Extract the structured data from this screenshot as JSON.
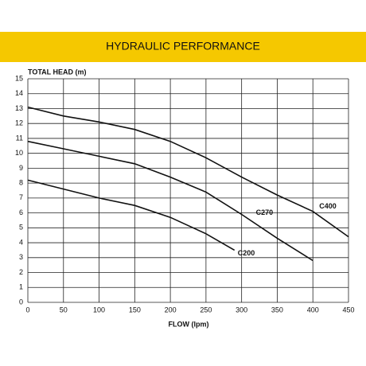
{
  "chart_data": {
    "type": "line",
    "title": "HYDRAULIC PERFORMANCE",
    "y_label": "TOTAL  HEAD (m)",
    "x_label": "FLOW (lpm)",
    "xlim": [
      0,
      450
    ],
    "xticks": [
      0,
      50,
      100,
      150,
      200,
      250,
      300,
      350,
      400,
      450
    ],
    "ylim": [
      0,
      15
    ],
    "yticks": [
      0,
      1,
      2,
      3,
      4,
      5,
      6,
      7,
      8,
      9,
      10,
      11,
      12,
      13,
      14,
      15
    ],
    "grid": true,
    "series": [
      {
        "name": "C400",
        "color": "#111111",
        "x": [
          0,
          50,
          100,
          150,
          200,
          250,
          300,
          350,
          400,
          450
        ],
        "values": [
          13.1,
          12.5,
          12.1,
          11.6,
          10.8,
          9.7,
          8.4,
          7.2,
          6.1,
          4.4
        ]
      },
      {
        "name": "C270",
        "color": "#111111",
        "x": [
          0,
          50,
          100,
          150,
          200,
          250,
          300,
          350,
          400
        ],
        "values": [
          10.8,
          10.3,
          9.8,
          9.3,
          8.4,
          7.4,
          5.9,
          4.3,
          2.8
        ]
      },
      {
        "name": "C200",
        "color": "#111111",
        "x": [
          0,
          50,
          100,
          150,
          200,
          250,
          290
        ],
        "values": [
          8.2,
          7.6,
          7.0,
          6.5,
          5.7,
          4.6,
          3.5
        ]
      }
    ]
  }
}
